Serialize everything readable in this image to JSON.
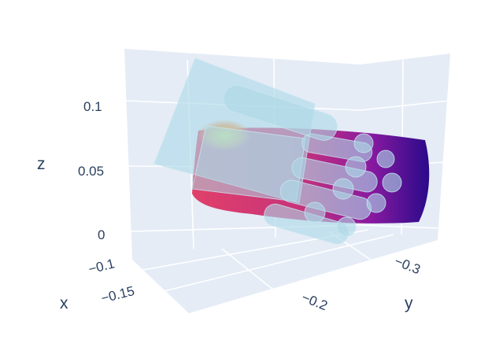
{
  "chart_data": {
    "type": "scatter3d",
    "title": "",
    "axes": {
      "x": {
        "label": "x",
        "ticks": [
          "−0.1",
          "−0.15"
        ]
      },
      "y": {
        "label": "y",
        "ticks": [
          "−0.2",
          "−0.3"
        ]
      },
      "z": {
        "label": "z",
        "ticks": [
          "0.1",
          "0.05",
          "0"
        ],
        "range": [
          -0.01,
          0.14
        ]
      }
    },
    "background": "#e5ecf6",
    "gridline_color": "#ffffff",
    "series": [
      {
        "kind": "point-cloud",
        "colorscale": [
          "#0d0887",
          "#7e03a8",
          "#cc4778",
          "#f89540",
          "#f0f921"
        ]
      },
      {
        "kind": "mesh",
        "color": "#add8e6",
        "opacity": 0.6
      }
    ]
  }
}
